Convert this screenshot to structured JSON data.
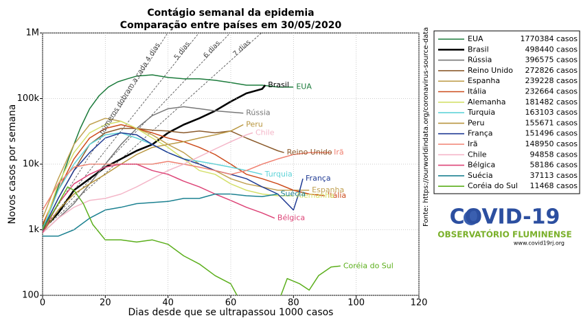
{
  "chart_data": {
    "type": "line",
    "title": "Contágio semanal da epidemia",
    "subtitle": "Comparação entre países em 30/05/2020",
    "xlabel": "Dias desde que se ultrapassou 1000 casos",
    "ylabel": "Novos casos por semana",
    "source": "Fonte: https://ourworldindata.org/coronavirus-source-data",
    "xlim": [
      0,
      120
    ],
    "xticks": [
      0,
      20,
      40,
      60,
      80,
      100,
      120
    ],
    "ylim": [
      100,
      1000000
    ],
    "log_y": true,
    "grid": true,
    "yticks": [
      {
        "value": 100,
        "label": "100"
      },
      {
        "value": 1000,
        "label": "1k"
      },
      {
        "value": 10000,
        "label": "10k"
      },
      {
        "value": 100000,
        "label": "100k"
      },
      {
        "value": 1000000,
        "label": "1M"
      }
    ],
    "doubling_lines": [
      {
        "days": 4,
        "label": "números dobram a cada 4 dias"
      },
      {
        "days": 5,
        "label": "5 dias"
      },
      {
        "days": 6,
        "label": "6 dias"
      },
      {
        "days": 7,
        "label": "7 dias"
      }
    ],
    "series": [
      {
        "name": "EUA",
        "color": "#1a7a3a",
        "total": 1770384,
        "total_label": "1770384 casos",
        "x": [
          0,
          3,
          6,
          9,
          12,
          15,
          18,
          21,
          24,
          27,
          30,
          35,
          40,
          45,
          50,
          55,
          60,
          65,
          70,
          75,
          80
        ],
        "values": [
          1100,
          2500,
          6000,
          15000,
          35000,
          70000,
          110000,
          150000,
          180000,
          200000,
          220000,
          230000,
          210000,
          200000,
          200000,
          190000,
          175000,
          160000,
          160000,
          150000,
          150000
        ]
      },
      {
        "name": "Brasil",
        "color": "#000000",
        "total": 498440,
        "total_label": "498440 casos",
        "x": [
          0,
          5,
          10,
          15,
          20,
          25,
          30,
          35,
          40,
          45,
          50,
          55,
          60,
          65,
          70,
          71
        ],
        "values": [
          1000,
          1800,
          4000,
          6000,
          9000,
          12000,
          16000,
          20000,
          30000,
          40000,
          50000,
          65000,
          90000,
          120000,
          140000,
          160000
        ]
      },
      {
        "name": "Rússia",
        "color": "#777777",
        "total": 396575,
        "total_label": "396575 casos",
        "x": [
          0,
          5,
          10,
          15,
          20,
          25,
          30,
          35,
          40,
          45,
          50,
          55,
          60,
          64
        ],
        "values": [
          900,
          1500,
          2500,
          5000,
          10000,
          20000,
          35000,
          55000,
          70000,
          75000,
          70000,
          65000,
          62000,
          60000
        ]
      },
      {
        "name": "Reino Unido",
        "color": "#8b5a2b",
        "total": 272826,
        "total_label": "272826 casos",
        "x": [
          0,
          5,
          10,
          15,
          20,
          25,
          30,
          35,
          40,
          45,
          50,
          55,
          60,
          65,
          70,
          75,
          77
        ],
        "values": [
          1000,
          3000,
          8000,
          20000,
          30000,
          35000,
          35000,
          33000,
          32000,
          30000,
          32000,
          30000,
          32000,
          25000,
          20000,
          16000,
          15000
        ]
      },
      {
        "name": "Espanha",
        "color": "#c0a050",
        "total": 239228,
        "total_label": "239228 casos",
        "x": [
          0,
          5,
          10,
          15,
          20,
          25,
          30,
          35,
          40,
          45,
          50,
          55,
          60,
          65,
          70,
          75,
          80,
          85
        ],
        "values": [
          1500,
          6000,
          20000,
          40000,
          50000,
          45000,
          35000,
          28000,
          20000,
          15000,
          10000,
          8000,
          6000,
          5000,
          4500,
          4000,
          4000,
          4000
        ]
      },
      {
        "name": "Itália",
        "color": "#cc4a1a",
        "total": 232664,
        "total_label": "232664 casos",
        "x": [
          0,
          5,
          10,
          15,
          20,
          25,
          30,
          35,
          40,
          45,
          50,
          55,
          60,
          65,
          70,
          75,
          80,
          85,
          90
        ],
        "values": [
          1200,
          4000,
          12000,
          25000,
          35000,
          40000,
          35000,
          30000,
          25000,
          22000,
          18000,
          14000,
          10000,
          7000,
          6000,
          5000,
          4000,
          3500,
          3300
        ]
      },
      {
        "name": "Alemanha",
        "color": "#d4e06a",
        "total": 181482,
        "total_label": "181482 casos",
        "x": [
          0,
          5,
          10,
          15,
          20,
          25,
          30,
          35,
          40,
          45,
          50,
          55,
          60,
          65,
          70,
          75,
          80
        ],
        "values": [
          1000,
          5000,
          15000,
          30000,
          40000,
          45000,
          35000,
          25000,
          18000,
          12000,
          8000,
          7000,
          5000,
          4000,
          3500,
          3300,
          3300
        ]
      },
      {
        "name": "Turquia",
        "color": "#5fd3d8",
        "total": 163103,
        "total_label": "163103 casos",
        "x": [
          0,
          5,
          10,
          15,
          20,
          25,
          30,
          35,
          40,
          45,
          50,
          55,
          60,
          65,
          70
        ],
        "values": [
          1000,
          4000,
          10000,
          20000,
          28000,
          30000,
          25000,
          20000,
          15000,
          12000,
          11000,
          10000,
          9000,
          8000,
          7000
        ]
      },
      {
        "name": "Peru",
        "color": "#b8953e",
        "total": 155671,
        "total_label": "155671 casos",
        "x": [
          0,
          5,
          10,
          15,
          20,
          25,
          30,
          35,
          40,
          45,
          50,
          55,
          60,
          64
        ],
        "values": [
          900,
          2000,
          3500,
          5000,
          7000,
          10000,
          14000,
          18000,
          20000,
          22000,
          25000,
          28000,
          32000,
          40000
        ]
      },
      {
        "name": "França",
        "color": "#1f3a93",
        "total": 151496,
        "total_label": "151496 casos",
        "x": [
          0,
          5,
          10,
          15,
          20,
          25,
          30,
          35,
          40,
          45,
          50,
          55,
          60,
          65,
          70,
          75,
          80,
          82,
          83
        ],
        "values": [
          1000,
          3000,
          8000,
          15000,
          25000,
          30000,
          28000,
          20000,
          15000,
          12000,
          10000,
          8000,
          7000,
          6000,
          4500,
          3500,
          2000,
          4000,
          6000
        ]
      },
      {
        "name": "Irã",
        "color": "#f08070",
        "total": 148950,
        "total_label": "148950 casos",
        "x": [
          0,
          5,
          10,
          15,
          20,
          25,
          30,
          35,
          40,
          45,
          50,
          55,
          60,
          65,
          70,
          75,
          80,
          85,
          92
        ],
        "values": [
          2000,
          5000,
          9000,
          10000,
          10000,
          10000,
          10000,
          10000,
          11000,
          10000,
          9000,
          8000,
          7000,
          8000,
          10000,
          12000,
          14000,
          15000,
          15000
        ]
      },
      {
        "name": "Chile",
        "color": "#f4b6c8",
        "total": 94858,
        "total_label": "94858 casos",
        "x": [
          0,
          5,
          10,
          15,
          20,
          25,
          30,
          35,
          40,
          45,
          50,
          55,
          60,
          65,
          67
        ],
        "values": [
          900,
          1500,
          2200,
          2800,
          3000,
          3500,
          4500,
          6000,
          8000,
          10000,
          13000,
          17000,
          22000,
          28000,
          30000
        ]
      },
      {
        "name": "Bélgica",
        "color": "#dd4477",
        "total": 58186,
        "total_label": "58186 casos",
        "x": [
          0,
          5,
          10,
          15,
          20,
          25,
          30,
          35,
          40,
          45,
          50,
          55,
          60,
          65,
          70,
          74
        ],
        "values": [
          900,
          2500,
          5000,
          7000,
          9000,
          10000,
          10000,
          8000,
          7000,
          5500,
          4500,
          3500,
          2800,
          2200,
          1800,
          1500
        ]
      },
      {
        "name": "Suécia",
        "color": "#1a8090",
        "total": 37113,
        "total_label": "37113 casos",
        "x": [
          0,
          5,
          10,
          15,
          20,
          25,
          30,
          35,
          40,
          45,
          50,
          55,
          60,
          65,
          70,
          75
        ],
        "values": [
          800,
          800,
          1000,
          1500,
          2000,
          2200,
          2500,
          2600,
          2700,
          3000,
          3000,
          3500,
          3500,
          3300,
          3200,
          3500
        ]
      },
      {
        "name": "Coréia do Sul",
        "color": "#5aae1a",
        "total": 11468,
        "total_label": "11468 casos",
        "x": [
          0,
          5,
          8,
          10,
          13,
          16,
          20,
          25,
          30,
          35,
          40,
          45,
          50,
          55,
          60,
          62,
          70,
          76,
          78,
          82,
          85,
          88,
          92,
          95
        ],
        "values": [
          1000,
          2500,
          4500,
          4000,
          2500,
          1200,
          700,
          700,
          650,
          700,
          600,
          400,
          300,
          200,
          150,
          100,
          null,
          100,
          180,
          150,
          120,
          200,
          270,
          280
        ]
      }
    ],
    "logo": {
      "title": "COVID-19",
      "subtitle": "OBSERVATÓRIO FLUMINENSE",
      "url": "www.covid19rj.org"
    }
  }
}
